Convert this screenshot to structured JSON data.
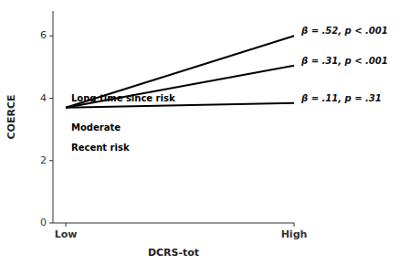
{
  "chart_data": {
    "type": "line",
    "categories": [
      "Low",
      "High"
    ],
    "series": [
      {
        "name": "Long time since risk",
        "color": "#000000",
        "values": [
          3.7,
          3.85
        ]
      },
      {
        "name": "Moderate",
        "color": "#000000",
        "values": [
          3.7,
          5.05
        ]
      },
      {
        "name": "Recent risk",
        "color": "#000000",
        "values": [
          3.7,
          6.0
        ]
      }
    ],
    "annotations": [
      {
        "text": "β = .52, p < .001",
        "y": 6.0
      },
      {
        "text": "β = .31, p < .001",
        "y": 5.05
      },
      {
        "text": "β = .11, p = .31",
        "y": 3.85
      }
    ],
    "xlabel": "DCRS-tot",
    "ylabel": "COERCE",
    "ylim": [
      0,
      6.8
    ],
    "yticks": [
      0,
      2,
      4,
      6
    ],
    "grid": false
  }
}
